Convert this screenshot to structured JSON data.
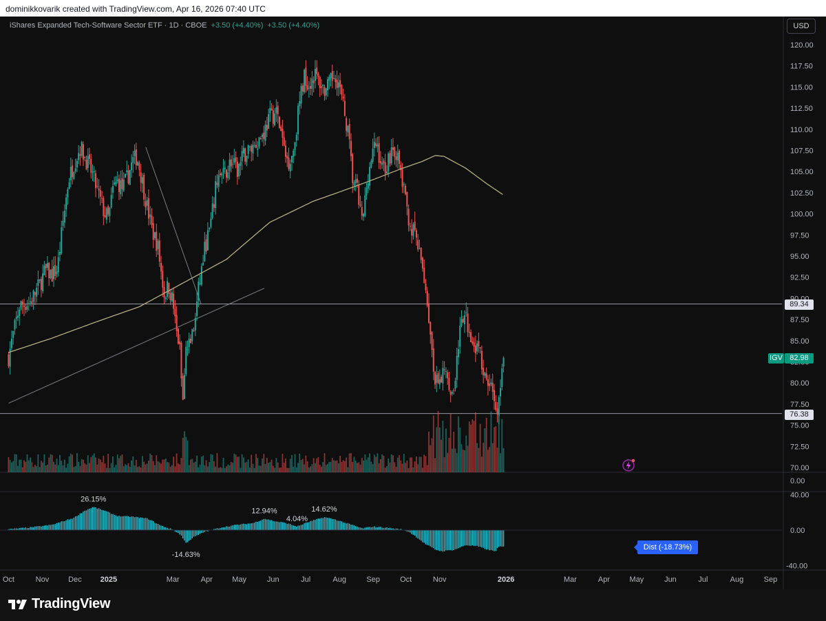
{
  "header": {
    "text": "dominikkovarik created with TradingView.com, Apr 16, 2026 07:40 UTC"
  },
  "legend": {
    "name": "iShares Expanded Tech-Software Sector ETF · 1D · CBOE",
    "change1": "+3.50 (+4.40%)",
    "change2": "+3.50 (+4.40%)"
  },
  "currency_button": "USD",
  "price_tags": {
    "symbol": "IGV",
    "last": "82.98",
    "level_upper": "89.34",
    "level_lower": "76.38"
  },
  "indicator_tag": "Dist (-18.73%)",
  "footer": {
    "brand": "TradingView"
  },
  "colors": {
    "up": "#26a69a",
    "down": "#ef5350",
    "ma": "#b5ad82",
    "hist": "#26c6da",
    "tag_blue": "#2962ff"
  },
  "chart_data": [
    {
      "type": "candlestick",
      "title": "iShares Expanded Tech-Software Sector ETF · 1D · CBOE",
      "y_axis_ticks": [
        "120.00",
        "117.50",
        "115.00",
        "112.50",
        "110.00",
        "107.50",
        "105.00",
        "102.50",
        "100.00",
        "97.50",
        "95.00",
        "92.50",
        "90.00",
        "87.50",
        "85.00",
        "82.50",
        "80.00",
        "77.50",
        "75.00",
        "72.50",
        "70.00"
      ],
      "ylim": [
        70,
        120
      ],
      "x_axis_ticks": [
        "Oct",
        "Nov",
        "Dec",
        "2025",
        "Mar",
        "Apr",
        "May",
        "Jun",
        "Jul",
        "Aug",
        "Sep",
        "Oct",
        "Nov",
        "2026",
        "Mar",
        "Apr",
        "May",
        "Jun",
        "Jul",
        "Aug",
        "Sep"
      ],
      "x_tick_days": [
        0,
        31,
        61,
        92,
        151,
        182,
        212,
        243,
        273,
        304,
        335,
        365,
        396,
        457,
        516,
        547,
        577,
        608,
        638,
        669,
        700
      ],
      "close_path": [
        [
          0,
          83.1
        ],
        [
          10,
          89.1
        ],
        [
          20,
          89.6
        ],
        [
          28,
          91.5
        ],
        [
          34,
          93.3
        ],
        [
          40,
          92.8
        ],
        [
          45,
          93.5
        ],
        [
          50,
          99
        ],
        [
          55,
          104
        ],
        [
          61,
          106.3
        ],
        [
          66,
          107.9
        ],
        [
          72,
          106.2
        ],
        [
          77,
          104.7
        ],
        [
          82,
          102.5
        ],
        [
          88,
          100.1
        ],
        [
          92,
          99.4
        ],
        [
          96,
          103
        ],
        [
          100,
          103.8
        ],
        [
          105,
          103
        ],
        [
          110,
          104.6
        ],
        [
          114,
          106.2
        ],
        [
          118,
          106.8
        ],
        [
          122,
          104.4
        ],
        [
          127,
          101
        ],
        [
          132,
          98
        ],
        [
          137,
          96.3
        ],
        [
          140,
          93.3
        ],
        [
          143,
          90.5
        ],
        [
          147,
          91.5
        ],
        [
          151,
          89.6
        ],
        [
          154,
          86.1
        ],
        [
          157,
          84.5
        ],
        [
          160,
          77.5
        ],
        [
          163,
          83.5
        ],
        [
          167,
          85.2
        ],
        [
          170,
          86.1
        ],
        [
          175,
          91.5
        ],
        [
          180,
          95.7
        ],
        [
          186,
          98.9
        ],
        [
          192,
          104.5
        ],
        [
          198,
          104.5
        ],
        [
          204,
          106.2
        ],
        [
          210,
          105
        ],
        [
          216,
          106.9
        ],
        [
          222,
          107.7
        ],
        [
          228,
          108.5
        ],
        [
          234,
          109.5
        ],
        [
          240,
          111.5
        ],
        [
          246,
          112
        ],
        [
          250,
          109.8
        ],
        [
          254,
          106.9
        ],
        [
          258,
          106.2
        ],
        [
          262,
          107.7
        ],
        [
          267,
          113
        ],
        [
          272,
          116.5
        ],
        [
          276,
          115.2
        ],
        [
          281,
          116.6
        ],
        [
          286,
          115.5
        ],
        [
          291,
          114.5
        ],
        [
          295,
          115.3
        ],
        [
          300,
          116.7
        ],
        [
          304,
          115
        ],
        [
          307,
          113
        ],
        [
          312,
          109.5
        ],
        [
          316,
          104.2
        ],
        [
          320,
          102.9
        ],
        [
          325,
          98.8
        ],
        [
          330,
          104.5
        ],
        [
          334,
          106.9
        ],
        [
          338,
          108.4
        ],
        [
          343,
          105.4
        ],
        [
          348,
          105.9
        ],
        [
          352,
          107.8
        ],
        [
          355,
          107.5
        ],
        [
          359,
          105.7
        ],
        [
          363,
          102.8
        ],
        [
          366,
          100.5
        ],
        [
          370,
          98.1
        ],
        [
          374,
          97.5
        ],
        [
          378,
          94.6
        ],
        [
          381,
          93.3
        ],
        [
          385,
          89.3
        ],
        [
          389,
          83.2
        ],
        [
          392,
          80
        ],
        [
          396,
          79.7
        ],
        [
          401,
          82.5
        ],
        [
          405,
          80
        ],
        [
          408,
          78.1
        ],
        [
          413,
          84.5
        ],
        [
          417,
          87.5
        ],
        [
          420,
          87.5
        ],
        [
          424,
          86
        ],
        [
          428,
          84.6
        ],
        [
          432,
          84
        ],
        [
          436,
          81.2
        ],
        [
          440,
          79.4
        ],
        [
          444,
          79.9
        ],
        [
          448,
          76.2
        ],
        [
          452,
          79.5
        ],
        [
          455,
          82.98
        ]
      ],
      "ma_200_path": [
        [
          0,
          83.6
        ],
        [
          40,
          85.3
        ],
        [
          80,
          87.2
        ],
        [
          120,
          89
        ],
        [
          160,
          91.8
        ],
        [
          200,
          94.6
        ],
        [
          240,
          99
        ],
        [
          280,
          101.5
        ],
        [
          300,
          102.4
        ],
        [
          330,
          103.8
        ],
        [
          360,
          105.3
        ],
        [
          380,
          106.2
        ],
        [
          392,
          106.9
        ],
        [
          400,
          106.8
        ],
        [
          420,
          105.4
        ],
        [
          440,
          103.5
        ],
        [
          455,
          102.2
        ]
      ],
      "horizontal_levels": [
        89.34,
        76.38
      ],
      "trendlines": [
        {
          "from": [
            0,
            77.6
          ],
          "to": [
            235,
            91.2
          ]
        },
        {
          "from": [
            126,
            107.9
          ],
          "to": [
            177,
            89.3
          ]
        }
      ],
      "last_price": 82.98
    },
    {
      "type": "bar",
      "title": "Dist",
      "y_axis_ticks": [
        "40.00",
        "0.00",
        "-40.00"
      ],
      "ylim": [
        -40,
        40
      ],
      "extra_tick": "0.00",
      "path": [
        [
          0,
          1
        ],
        [
          20,
          3
        ],
        [
          40,
          6
        ],
        [
          60,
          14
        ],
        [
          70,
          22
        ],
        [
          78,
          26.15
        ],
        [
          88,
          22
        ],
        [
          100,
          16
        ],
        [
          115,
          15
        ],
        [
          128,
          13
        ],
        [
          140,
          5
        ],
        [
          150,
          1
        ],
        [
          158,
          -5
        ],
        [
          163,
          -14.63
        ],
        [
          170,
          -8
        ],
        [
          180,
          -2
        ],
        [
          195,
          3
        ],
        [
          210,
          6
        ],
        [
          225,
          8
        ],
        [
          235,
          12.94
        ],
        [
          245,
          10
        ],
        [
          255,
          8
        ],
        [
          265,
          4.04
        ],
        [
          275,
          9
        ],
        [
          290,
          14.62
        ],
        [
          300,
          12
        ],
        [
          310,
          8
        ],
        [
          325,
          2
        ],
        [
          335,
          4
        ],
        [
          345,
          3
        ],
        [
          360,
          1
        ],
        [
          368,
          -2
        ],
        [
          375,
          -8
        ],
        [
          382,
          -15
        ],
        [
          392,
          -22
        ],
        [
          398,
          -24
        ],
        [
          410,
          -22
        ],
        [
          420,
          -17
        ],
        [
          430,
          -18
        ],
        [
          440,
          -22
        ],
        [
          447,
          -24
        ],
        [
          450,
          -19
        ],
        [
          455,
          -18.73
        ]
      ],
      "labels": [
        {
          "text": "26.15%",
          "day": 78,
          "value": 26.15
        },
        {
          "text": "-14.63%",
          "day": 163,
          "value": -14.63
        },
        {
          "text": "12.94%",
          "day": 235,
          "value": 12.94
        },
        {
          "text": "4.04%",
          "day": 265,
          "value": 4.04
        },
        {
          "text": "14.62%",
          "day": 290,
          "value": 14.62
        }
      ],
      "last_value": -18.73
    }
  ]
}
